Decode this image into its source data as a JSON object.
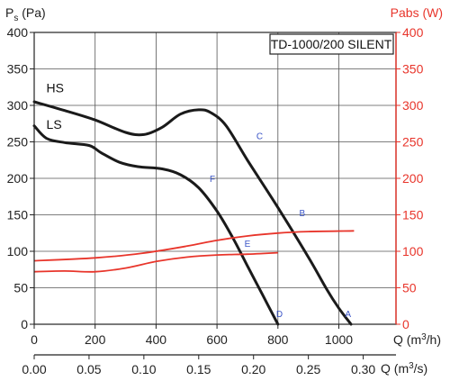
{
  "chart_data": {
    "type": "line",
    "model": "TD-1000/200 SILENT",
    "y_left_label_main": "P",
    "y_left_label_sub": "s",
    "y_left_label_unit": " (Pa)",
    "y_right_label": "Pabs (W)",
    "x_label_top_prefix": "Q (m",
    "x_label_top_exp": "3",
    "x_label_top_suffix": "/h)",
    "x_label_bottom_prefix": "Q (m",
    "x_label_bottom_exp": "3",
    "x_label_bottom_suffix": "/s)",
    "ylim": [
      0,
      400
    ],
    "xlim_m3h": [
      0,
      1100
    ],
    "y_ticks": [
      "0",
      "50",
      "100",
      "150",
      "200",
      "250",
      "300",
      "350",
      "400"
    ],
    "y_right_ticks": [
      "0",
      "50",
      "100",
      "150",
      "200",
      "250",
      "300",
      "350",
      "400"
    ],
    "x_ticks_top": [
      "0",
      "200",
      "400",
      "600",
      "800",
      "1000"
    ],
    "x_ticks_bottom": [
      "0.00",
      "0.05",
      "0.10",
      "0.15",
      "0.20",
      "0.25",
      "0.30"
    ],
    "series": [
      {
        "name": "HS",
        "color": "#1a1a1a",
        "axis": "left",
        "points": [
          [
            0,
            305
          ],
          [
            100,
            293
          ],
          [
            200,
            280
          ],
          [
            300,
            263
          ],
          [
            360,
            260
          ],
          [
            420,
            270
          ],
          [
            480,
            288
          ],
          [
            540,
            294
          ],
          [
            580,
            290
          ],
          [
            630,
            272
          ],
          [
            700,
            225
          ],
          [
            800,
            160
          ],
          [
            900,
            92
          ],
          [
            960,
            48
          ],
          [
            1000,
            22
          ],
          [
            1040,
            0
          ]
        ]
      },
      {
        "name": "LS",
        "color": "#1a1a1a",
        "axis": "left",
        "points": [
          [
            0,
            272
          ],
          [
            40,
            255
          ],
          [
            100,
            249
          ],
          [
            180,
            245
          ],
          [
            220,
            235
          ],
          [
            280,
            222
          ],
          [
            340,
            216
          ],
          [
            420,
            213
          ],
          [
            480,
            205
          ],
          [
            540,
            187
          ],
          [
            600,
            155
          ],
          [
            650,
            120
          ],
          [
            700,
            80
          ],
          [
            750,
            40
          ],
          [
            800,
            0
          ]
        ]
      },
      {
        "name": "HS Pabs",
        "color": "#e8352b",
        "axis": "right",
        "points": [
          [
            0,
            87
          ],
          [
            200,
            91
          ],
          [
            350,
            97
          ],
          [
            500,
            107
          ],
          [
            600,
            115
          ],
          [
            700,
            121
          ],
          [
            800,
            125
          ],
          [
            900,
            127
          ],
          [
            1050,
            128
          ]
        ]
      },
      {
        "name": "LS Pabs",
        "color": "#e8352b",
        "axis": "right",
        "points": [
          [
            0,
            72
          ],
          [
            100,
            73
          ],
          [
            200,
            72
          ],
          [
            300,
            77
          ],
          [
            400,
            86
          ],
          [
            500,
            92
          ],
          [
            600,
            95
          ],
          [
            700,
            96
          ],
          [
            800,
            98
          ]
        ]
      }
    ],
    "point_labels": [
      {
        "text": "A",
        "x": 1030,
        "y": 10
      },
      {
        "text": "B",
        "x": 880,
        "y": 148
      },
      {
        "text": "C",
        "x": 740,
        "y": 254
      },
      {
        "text": "D",
        "x": 805,
        "y": 10
      },
      {
        "text": "E",
        "x": 700,
        "y": 106
      },
      {
        "text": "F",
        "x": 585,
        "y": 195
      }
    ],
    "curve_labels": [
      {
        "text": "HS",
        "x": 40,
        "y": 318
      },
      {
        "text": "LS",
        "x": 40,
        "y": 268
      }
    ],
    "grid": true
  }
}
